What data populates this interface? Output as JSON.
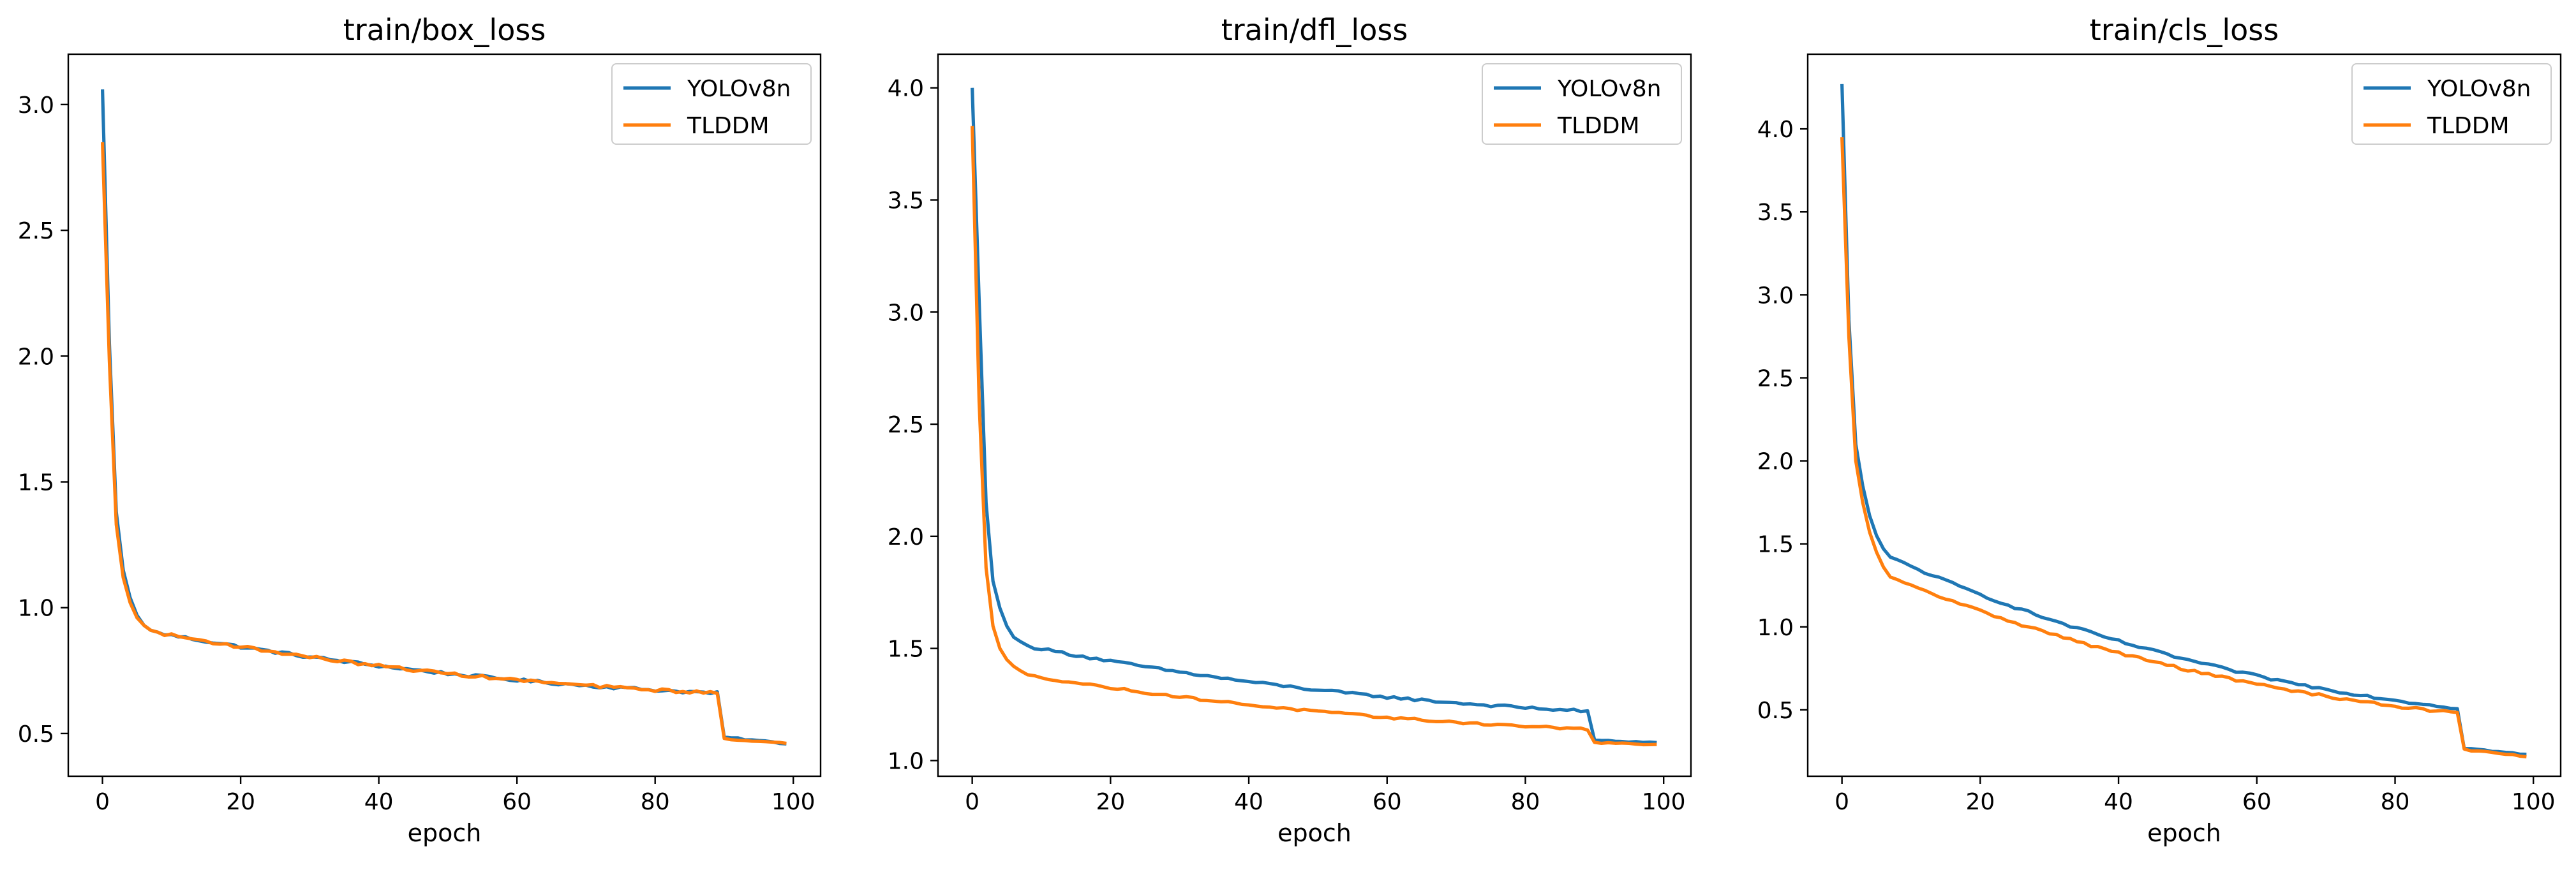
{
  "colors": {
    "YOLOv8n": "#1f77b4",
    "TLDDM": "#ff7f0e"
  },
  "chart_data": [
    {
      "type": "line",
      "title": "train/box_loss",
      "xlabel": "epoch",
      "ylabel": "",
      "xlim": [
        -4.95,
        103.95
      ],
      "ylim": [
        0.33,
        3.2
      ],
      "xticks": [
        0,
        20,
        40,
        60,
        80,
        100
      ],
      "yticks": [
        0.5,
        1.0,
        1.5,
        2.0,
        2.5,
        3.0
      ],
      "ytick_labels": [
        "0.5",
        "1.0",
        "1.5",
        "2.0",
        "2.5",
        "3.0"
      ],
      "legend_loc": "upper right",
      "grid": false,
      "series": [
        {
          "name": "YOLOv8n",
          "start": 0.9,
          "end": 0.66,
          "after": [
            0.485,
            0.46
          ],
          "noise": 0.006,
          "head": [
            3.06,
            2.05,
            1.38,
            1.15,
            1.04,
            0.97,
            0.93,
            0.91
          ]
        },
        {
          "name": "TLDDM",
          "start": 0.9,
          "end": 0.66,
          "after": [
            0.48,
            0.46
          ],
          "noise": 0.006,
          "head": [
            2.85,
            1.98,
            1.33,
            1.12,
            1.02,
            0.96,
            0.93,
            0.91
          ]
        }
      ]
    },
    {
      "type": "line",
      "title": "train/dfl_loss",
      "xlabel": "epoch",
      "ylabel": "",
      "xlim": [
        -4.95,
        103.95
      ],
      "ylim": [
        0.93,
        4.15
      ],
      "xticks": [
        0,
        20,
        40,
        60,
        80,
        100
      ],
      "yticks": [
        1.0,
        1.5,
        2.0,
        2.5,
        3.0,
        3.5,
        4.0
      ],
      "ytick_labels": [
        "1.0",
        "1.5",
        "2.0",
        "2.5",
        "3.0",
        "3.5",
        "4.0"
      ],
      "legend_loc": "upper right",
      "grid": false,
      "series": [
        {
          "name": "YOLOv8n",
          "start": 1.51,
          "end": 1.22,
          "after": [
            1.09,
            1.08
          ],
          "noise": 0.006,
          "head": [
            4.0,
            3.05,
            2.15,
            1.8,
            1.68,
            1.6,
            1.55,
            1.53
          ]
        },
        {
          "name": "TLDDM",
          "start": 1.38,
          "end": 1.14,
          "after": [
            1.08,
            1.07
          ],
          "noise": 0.005,
          "head": [
            3.83,
            2.6,
            1.86,
            1.6,
            1.5,
            1.45,
            1.42,
            1.4
          ]
        }
      ]
    },
    {
      "type": "line",
      "title": "train/cls_loss",
      "xlabel": "epoch",
      "ylabel": "",
      "xlim": [
        -4.95,
        103.95
      ],
      "ylim": [
        0.1,
        4.45
      ],
      "xticks": [
        0,
        20,
        40,
        60,
        80,
        100
      ],
      "yticks": [
        0.5,
        1.0,
        1.5,
        2.0,
        2.5,
        3.0,
        3.5,
        4.0
      ],
      "ytick_labels": [
        "0.5",
        "1.0",
        "1.5",
        "2.0",
        "2.5",
        "3.0",
        "3.5",
        "4.0"
      ],
      "legend_loc": "upper right",
      "grid": false,
      "series": [
        {
          "name": "YOLOv8n",
          "start": 1.4,
          "end": 0.51,
          "after": [
            0.27,
            0.23
          ],
          "noise": 0.008,
          "head": [
            4.27,
            2.85,
            2.1,
            1.85,
            1.67,
            1.55,
            1.47,
            1.42
          ]
        },
        {
          "name": "TLDDM",
          "start": 1.28,
          "end": 0.48,
          "after": [
            0.26,
            0.22
          ],
          "noise": 0.008,
          "head": [
            3.95,
            2.75,
            2.0,
            1.75,
            1.57,
            1.45,
            1.36,
            1.3
          ]
        }
      ]
    }
  ]
}
